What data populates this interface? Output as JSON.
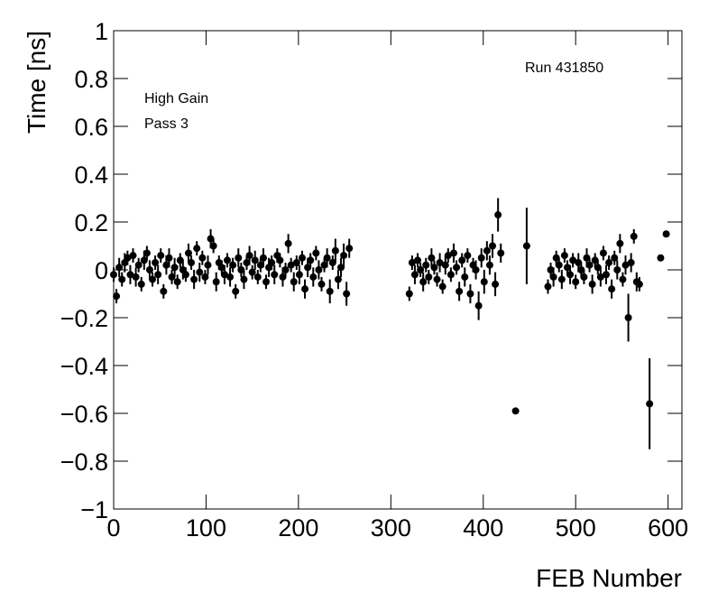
{
  "chart_data": {
    "type": "scatter",
    "x_label": "FEB Number",
    "y_label": "Time [ns]",
    "annotations": [
      "Run 431850",
      "High Gain",
      "Pass 3"
    ],
    "xlim": [
      0,
      615
    ],
    "ylim": [
      -1,
      1
    ],
    "xticks": [
      0,
      100,
      200,
      300,
      400,
      500,
      600
    ],
    "yticks": [
      {
        "value": -1,
        "label": "−1"
      },
      {
        "value": -0.8,
        "label": "−0.8"
      },
      {
        "value": -0.6,
        "label": "−0.6"
      },
      {
        "value": -0.4,
        "label": "−0.4"
      },
      {
        "value": -0.2,
        "label": "−0.2"
      },
      0,
      0.2,
      0.4,
      0.6,
      0.8,
      1
    ],
    "color": "#000000",
    "x": [
      0,
      3,
      6,
      9,
      12,
      15,
      18,
      21,
      24,
      27,
      30,
      33,
      36,
      39,
      42,
      45,
      48,
      51,
      54,
      57,
      60,
      63,
      66,
      69,
      72,
      75,
      78,
      81,
      84,
      87,
      90,
      93,
      96,
      99,
      102,
      105,
      108,
      111,
      114,
      117,
      120,
      123,
      126,
      129,
      132,
      135,
      138,
      141,
      144,
      147,
      150,
      153,
      156,
      159,
      162,
      165,
      168,
      171,
      174,
      177,
      180,
      183,
      186,
      189,
      192,
      195,
      198,
      201,
      204,
      207,
      210,
      213,
      216,
      219,
      222,
      225,
      228,
      231,
      234,
      237,
      240,
      243,
      246,
      249,
      252,
      255,
      320,
      323,
      326,
      329,
      332,
      335,
      338,
      341,
      344,
      347,
      350,
      353,
      356,
      359,
      362,
      365,
      368,
      371,
      374,
      377,
      380,
      383,
      386,
      389,
      392,
      395,
      398,
      401,
      404,
      407,
      410,
      413,
      416,
      419,
      435,
      447,
      470,
      473,
      476,
      479,
      482,
      485,
      488,
      491,
      494,
      497,
      500,
      503,
      506,
      509,
      512,
      515,
      518,
      521,
      524,
      527,
      530,
      533,
      536,
      539,
      542,
      545,
      548,
      551,
      554,
      557,
      560,
      563,
      566,
      569,
      580,
      592,
      598
    ],
    "values": [
      -0.02,
      -0.11,
      0.01,
      -0.04,
      0.03,
      0.05,
      -0.02,
      0.06,
      -0.03,
      0.02,
      -0.06,
      0.04,
      0.07,
      0.0,
      -0.04,
      0.03,
      -0.02,
      0.06,
      -0.09,
      0.02,
      0.05,
      -0.03,
      0.01,
      -0.05,
      0.04,
      0.0,
      -0.02,
      0.07,
      0.03,
      -0.04,
      0.09,
      -0.01,
      0.05,
      -0.03,
      0.02,
      0.13,
      0.1,
      -0.05,
      0.03,
      0.01,
      -0.02,
      0.04,
      -0.03,
      0.02,
      -0.09,
      0.05,
      0.0,
      -0.04,
      0.03,
      0.06,
      -0.01,
      0.04,
      -0.03,
      0.02,
      0.05,
      -0.05,
      0.01,
      0.03,
      -0.02,
      0.06,
      0.04,
      -0.03,
      0.0,
      0.11,
      0.02,
      -0.05,
      0.03,
      -0.02,
      0.05,
      -0.08,
      0.01,
      0.04,
      -0.03,
      0.07,
      0.0,
      -0.06,
      0.02,
      0.05,
      -0.09,
      0.03,
      0.08,
      -0.04,
      0.01,
      0.06,
      -0.1,
      0.09,
      -0.1,
      0.03,
      -0.02,
      0.04,
      0.0,
      -0.05,
      0.02,
      -0.03,
      0.05,
      0.01,
      -0.04,
      0.03,
      -0.07,
      0.02,
      0.06,
      -0.02,
      0.07,
      0.01,
      -0.09,
      0.04,
      -0.03,
      0.06,
      -0.1,
      0.02,
      0.0,
      -0.15,
      0.05,
      -0.05,
      0.08,
      0.02,
      0.1,
      -0.06,
      0.23,
      0.07,
      -0.59,
      0.1,
      -0.07,
      0.0,
      -0.03,
      0.05,
      0.02,
      -0.04,
      0.06,
      0.01,
      -0.02,
      0.04,
      -0.05,
      0.03,
      0.0,
      -0.03,
      0.05,
      0.02,
      -0.06,
      0.04,
      0.01,
      -0.03,
      0.07,
      -0.02,
      0.03,
      -0.08,
      0.05,
      0.0,
      0.11,
      -0.04,
      0.02,
      -0.2,
      0.03,
      0.14,
      -0.05,
      -0.06,
      -0.56,
      0.05,
      0.15
    ],
    "errors": [
      0.03,
      0.03,
      0.04,
      0.03,
      0.04,
      0.03,
      0.04,
      0.03,
      0.04,
      0.03,
      0.03,
      0.04,
      0.03,
      0.04,
      0.03,
      0.03,
      0.04,
      0.03,
      0.03,
      0.04,
      0.04,
      0.03,
      0.04,
      0.03,
      0.03,
      0.04,
      0.03,
      0.04,
      0.03,
      0.04,
      0.03,
      0.04,
      0.03,
      0.03,
      0.04,
      0.04,
      0.03,
      0.04,
      0.03,
      0.03,
      0.04,
      0.03,
      0.04,
      0.03,
      0.03,
      0.04,
      0.03,
      0.04,
      0.03,
      0.04,
      0.03,
      0.04,
      0.03,
      0.03,
      0.04,
      0.03,
      0.04,
      0.03,
      0.04,
      0.03,
      0.03,
      0.04,
      0.03,
      0.04,
      0.03,
      0.04,
      0.03,
      0.04,
      0.03,
      0.04,
      0.04,
      0.03,
      0.04,
      0.03,
      0.04,
      0.03,
      0.03,
      0.04,
      0.05,
      0.03,
      0.05,
      0.04,
      0.04,
      0.05,
      0.05,
      0.04,
      0.03,
      0.03,
      0.04,
      0.03,
      0.03,
      0.04,
      0.03,
      0.03,
      0.04,
      0.03,
      0.03,
      0.04,
      0.03,
      0.04,
      0.03,
      0.03,
      0.04,
      0.03,
      0.04,
      0.03,
      0.04,
      0.03,
      0.04,
      0.03,
      0.04,
      0.06,
      0.04,
      0.05,
      0.04,
      0.04,
      0.05,
      0.05,
      0.07,
      0.04,
      0.005,
      0.16,
      0.03,
      0.03,
      0.04,
      0.03,
      0.03,
      0.04,
      0.03,
      0.03,
      0.04,
      0.03,
      0.03,
      0.04,
      0.03,
      0.03,
      0.04,
      0.03,
      0.04,
      0.03,
      0.03,
      0.04,
      0.03,
      0.04,
      0.03,
      0.04,
      0.03,
      0.04,
      0.04,
      0.03,
      0.04,
      0.1,
      0.04,
      0.03,
      0.04,
      0.03,
      0.19,
      0.01,
      0.01
    ]
  }
}
